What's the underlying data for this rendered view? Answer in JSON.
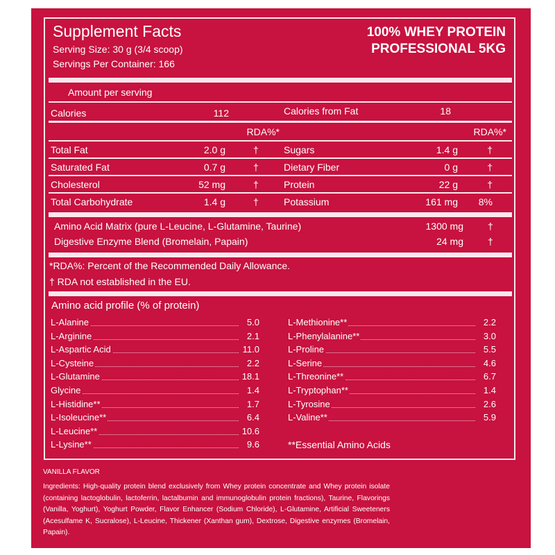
{
  "header": {
    "title": "Supplement Facts",
    "serving_size": "Serving Size: 30 g (3/4 scoop)",
    "servings_per_container": "Servings Per Container: 166",
    "product_line1": "100% WHEY PROTEIN",
    "product_line2": "PROFESSIONAL 5KG"
  },
  "amount_per_serving": "Amount per serving",
  "calories": {
    "label": "Calories",
    "value": "112",
    "fat_label": "Calories from Fat",
    "fat_value": "18"
  },
  "rda_header": "RDA%*",
  "nutrients_left": [
    {
      "name": "Total Fat",
      "amount": "2.0 g",
      "rda": "†"
    },
    {
      "name": "Saturated Fat",
      "amount": "0.7 g",
      "rda": "†"
    },
    {
      "name": "Cholesterol",
      "amount": "52 mg",
      "rda": "†"
    },
    {
      "name": "Total Carbohydrate",
      "amount": "1.4 g",
      "rda": "†"
    }
  ],
  "nutrients_right": [
    {
      "name": "Sugars",
      "amount": "1.4 g",
      "rda": "†"
    },
    {
      "name": "Dietary Fiber",
      "amount": "0 g",
      "rda": "†"
    },
    {
      "name": "Protein",
      "amount": "22 g",
      "rda": "†"
    },
    {
      "name": "Potassium",
      "amount": "161 mg",
      "rda": "8%"
    }
  ],
  "blends": [
    {
      "name": "Amino Acid Matrix (pure L-Leucine, L-Glutamine, Taurine)",
      "amount": "1300 mg",
      "rda": "†"
    },
    {
      "name": "Digestive Enzyme Blend (Bromelain, Papain)",
      "amount": "24 mg",
      "rda": "†"
    }
  ],
  "footnotes": [
    "*RDA%: Percent of the Recommended Daily Allowance.",
    "† RDA not established in the EU."
  ],
  "amino_profile": {
    "title": "Amino acid profile (% of protein)",
    "left": [
      {
        "name": "L-Alanine",
        "value": "5.0"
      },
      {
        "name": "L-Arginine",
        "value": "2.1"
      },
      {
        "name": "L-Aspartic Acid",
        "value": "11.0"
      },
      {
        "name": "L-Cysteine",
        "value": "2.2"
      },
      {
        "name": "L-Glutamine",
        "value": "18.1"
      },
      {
        "name": "Glycine",
        "value": "1.4"
      },
      {
        "name": "L-Histidine**",
        "value": "1.7"
      },
      {
        "name": "L-Isoleucine**",
        "value": "6.4"
      },
      {
        "name": "L-Leucine**",
        "value": "10.6"
      },
      {
        "name": "L-Lysine**",
        "value": "9.6"
      }
    ],
    "right": [
      {
        "name": "L-Methionine**",
        "value": "2.2"
      },
      {
        "name": "L-Phenylalanine**",
        "value": "3.0"
      },
      {
        "name": "L-Proline",
        "value": "5.5"
      },
      {
        "name": "L-Serine",
        "value": "4.6"
      },
      {
        "name": "L-Threonine**",
        "value": "6.7"
      },
      {
        "name": "L-Tryptophan**",
        "value": "1.4"
      },
      {
        "name": "L-Tyrosine",
        "value": "2.6"
      },
      {
        "name": "L-Valine**",
        "value": "5.9"
      }
    ],
    "note": "**Essential Amino Acids"
  },
  "flavor": "VANILLA FLAVOR",
  "ingredients": "Ingredients: High-quality protein blend exclusively from Whey protein concentrate and Whey protein isolate (containing lactoglobulin, lactoferrin, lactalbumin and immunoglobulin protein fractions), Taurine, Flavorings (Vanilla, Yoghurt), Yoghurt Powder, Flavor Enhancer (Sodium Chloride), L-Glutamine, Artificial Sweeteners (Acesulfame K, Sucralose), L-Leucine, Thickener (Xanthan gum), Dextrose, Digestive enzymes (Bromelain, Papain).",
  "colors": {
    "background": "#c8123f",
    "rules": "#fbe8ee"
  }
}
